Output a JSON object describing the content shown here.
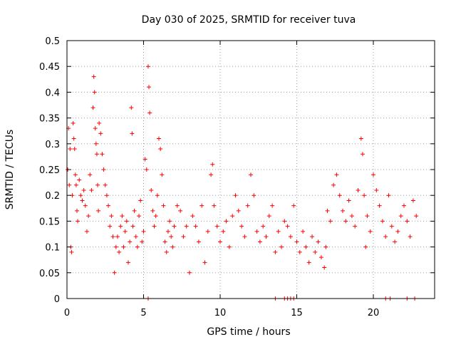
{
  "chart_data": {
    "type": "scatter",
    "title": "Day 030 of 2025, SRMTID for receiver tuva",
    "xlabel": "GPS time / hours",
    "ylabel": "SRMTID / TECUs",
    "xlim": [
      0,
      24
    ],
    "ylim": [
      0,
      0.5
    ],
    "x_ticks": [
      0,
      5,
      10,
      15,
      20
    ],
    "x_tick_labels": [
      "0",
      "5",
      "10",
      "15",
      "20"
    ],
    "y_ticks": [
      0,
      0.05,
      0.1,
      0.15,
      0.2,
      0.25,
      0.3,
      0.35,
      0.4,
      0.45,
      0.5
    ],
    "y_tick_labels": [
      "0",
      "0.05",
      "0.1",
      "0.15",
      "0.2",
      "0.25",
      "0.3",
      "0.35",
      "0.4",
      "0.45",
      "0.5"
    ],
    "grid": true,
    "marker": "plus",
    "series": [
      {
        "color": "#ff0000",
        "points": [
          [
            0.05,
            0.25
          ],
          [
            0.1,
            0.33
          ],
          [
            0.15,
            0.22
          ],
          [
            0.2,
            0.29
          ],
          [
            0.25,
            0.1
          ],
          [
            0.3,
            0.09
          ],
          [
            0.35,
            0.2
          ],
          [
            0.4,
            0.34
          ],
          [
            0.45,
            0.31
          ],
          [
            0.5,
            0.29
          ],
          [
            0.55,
            0.24
          ],
          [
            0.6,
            0.22
          ],
          [
            0.65,
            0.17
          ],
          [
            0.7,
            0.15
          ],
          [
            0.8,
            0.23
          ],
          [
            0.9,
            0.2
          ],
          [
            1.0,
            0.19
          ],
          [
            1.1,
            0.21
          ],
          [
            1.2,
            0.18
          ],
          [
            1.3,
            0.13
          ],
          [
            1.4,
            0.16
          ],
          [
            1.5,
            0.24
          ],
          [
            1.6,
            0.21
          ],
          [
            1.7,
            0.37
          ],
          [
            1.75,
            0.43
          ],
          [
            1.8,
            0.4
          ],
          [
            1.85,
            0.33
          ],
          [
            1.9,
            0.3
          ],
          [
            1.95,
            0.28
          ],
          [
            2.0,
            0.22
          ],
          [
            2.05,
            0.17
          ],
          [
            2.1,
            0.34
          ],
          [
            2.2,
            0.32
          ],
          [
            2.3,
            0.28
          ],
          [
            2.4,
            0.25
          ],
          [
            2.5,
            0.22
          ],
          [
            2.6,
            0.2
          ],
          [
            2.7,
            0.18
          ],
          [
            2.8,
            0.14
          ],
          [
            2.9,
            0.16
          ],
          [
            3.0,
            0.12
          ],
          [
            3.1,
            0.05
          ],
          [
            3.2,
            0.1
          ],
          [
            3.3,
            0.12
          ],
          [
            3.4,
            0.09
          ],
          [
            3.5,
            0.14
          ],
          [
            3.6,
            0.16
          ],
          [
            3.7,
            0.1
          ],
          [
            3.8,
            0.13
          ],
          [
            3.9,
            0.15
          ],
          [
            4.0,
            0.07
          ],
          [
            4.1,
            0.11
          ],
          [
            4.2,
            0.37
          ],
          [
            4.25,
            0.32
          ],
          [
            4.3,
            0.14
          ],
          [
            4.4,
            0.17
          ],
          [
            4.5,
            0.12
          ],
          [
            4.6,
            0.1
          ],
          [
            4.7,
            0.16
          ],
          [
            4.8,
            0.19
          ],
          [
            4.9,
            0.11
          ],
          [
            5.0,
            0.13
          ],
          [
            5.1,
            0.27
          ],
          [
            5.2,
            0.25
          ],
          [
            5.3,
            0.45
          ],
          [
            5.35,
            0.41
          ],
          [
            5.4,
            0.36
          ],
          [
            5.5,
            0.21
          ],
          [
            5.6,
            0.17
          ],
          [
            5.7,
            0.14
          ],
          [
            5.8,
            0.16
          ],
          [
            5.9,
            0.2
          ],
          [
            6.0,
            0.31
          ],
          [
            6.1,
            0.29
          ],
          [
            6.2,
            0.24
          ],
          [
            6.3,
            0.18
          ],
          [
            6.4,
            0.11
          ],
          [
            6.5,
            0.09
          ],
          [
            6.6,
            0.13
          ],
          [
            6.7,
            0.15
          ],
          [
            6.8,
            0.12
          ],
          [
            6.9,
            0.1
          ],
          [
            7.0,
            0.14
          ],
          [
            7.2,
            0.18
          ],
          [
            7.4,
            0.17
          ],
          [
            7.6,
            0.12
          ],
          [
            7.8,
            0.14
          ],
          [
            8.0,
            0.05
          ],
          [
            8.2,
            0.16
          ],
          [
            8.4,
            0.14
          ],
          [
            8.6,
            0.11
          ],
          [
            8.8,
            0.18
          ],
          [
            9.0,
            0.07
          ],
          [
            9.2,
            0.13
          ],
          [
            9.4,
            0.24
          ],
          [
            9.5,
            0.26
          ],
          [
            9.6,
            0.18
          ],
          [
            9.8,
            0.14
          ],
          [
            10.0,
            0.11
          ],
          [
            10.2,
            0.13
          ],
          [
            10.4,
            0.15
          ],
          [
            10.6,
            0.1
          ],
          [
            10.8,
            0.16
          ],
          [
            11.0,
            0.2
          ],
          [
            11.2,
            0.17
          ],
          [
            11.4,
            0.14
          ],
          [
            11.6,
            0.12
          ],
          [
            11.8,
            0.18
          ],
          [
            12.0,
            0.24
          ],
          [
            12.2,
            0.2
          ],
          [
            12.4,
            0.13
          ],
          [
            12.6,
            0.11
          ],
          [
            12.8,
            0.14
          ],
          [
            13.0,
            0.12
          ],
          [
            13.2,
            0.16
          ],
          [
            13.4,
            0.18
          ],
          [
            13.6,
            0.09
          ],
          [
            13.8,
            0.13
          ],
          [
            14.0,
            0.1
          ],
          [
            14.2,
            0.15
          ],
          [
            14.4,
            0.14
          ],
          [
            14.6,
            0.12
          ],
          [
            14.8,
            0.18
          ],
          [
            15.0,
            0.11
          ],
          [
            15.2,
            0.09
          ],
          [
            15.4,
            0.13
          ],
          [
            15.6,
            0.1
          ],
          [
            15.8,
            0.07
          ],
          [
            16.0,
            0.12
          ],
          [
            16.2,
            0.09
          ],
          [
            16.4,
            0.11
          ],
          [
            16.6,
            0.08
          ],
          [
            16.8,
            0.06
          ],
          [
            16.9,
            0.1
          ],
          [
            17.0,
            0.17
          ],
          [
            17.2,
            0.15
          ],
          [
            17.4,
            0.22
          ],
          [
            17.6,
            0.24
          ],
          [
            17.8,
            0.2
          ],
          [
            18.0,
            0.17
          ],
          [
            18.2,
            0.15
          ],
          [
            18.4,
            0.19
          ],
          [
            18.6,
            0.16
          ],
          [
            18.8,
            0.14
          ],
          [
            19.0,
            0.21
          ],
          [
            19.2,
            0.31
          ],
          [
            19.3,
            0.28
          ],
          [
            19.4,
            0.2
          ],
          [
            19.5,
            0.1
          ],
          [
            19.6,
            0.16
          ],
          [
            19.8,
            0.13
          ],
          [
            20.0,
            0.24
          ],
          [
            20.2,
            0.21
          ],
          [
            20.4,
            0.18
          ],
          [
            20.6,
            0.15
          ],
          [
            20.8,
            0.12
          ],
          [
            21.0,
            0.2
          ],
          [
            21.2,
            0.14
          ],
          [
            21.4,
            0.11
          ],
          [
            21.6,
            0.13
          ],
          [
            21.8,
            0.16
          ],
          [
            22.0,
            0.18
          ],
          [
            22.2,
            0.15
          ],
          [
            22.4,
            0.12
          ],
          [
            22.6,
            0.19
          ],
          [
            22.8,
            0.16
          ],
          [
            5.3,
            0.0
          ],
          [
            13.6,
            0.0
          ],
          [
            14.2,
            0.0
          ],
          [
            14.4,
            0.0
          ],
          [
            14.6,
            0.0
          ],
          [
            14.8,
            0.0
          ],
          [
            20.8,
            0.0
          ],
          [
            21.1,
            0.0
          ],
          [
            22.2,
            0.0
          ],
          [
            22.7,
            0.0
          ]
        ]
      }
    ]
  }
}
